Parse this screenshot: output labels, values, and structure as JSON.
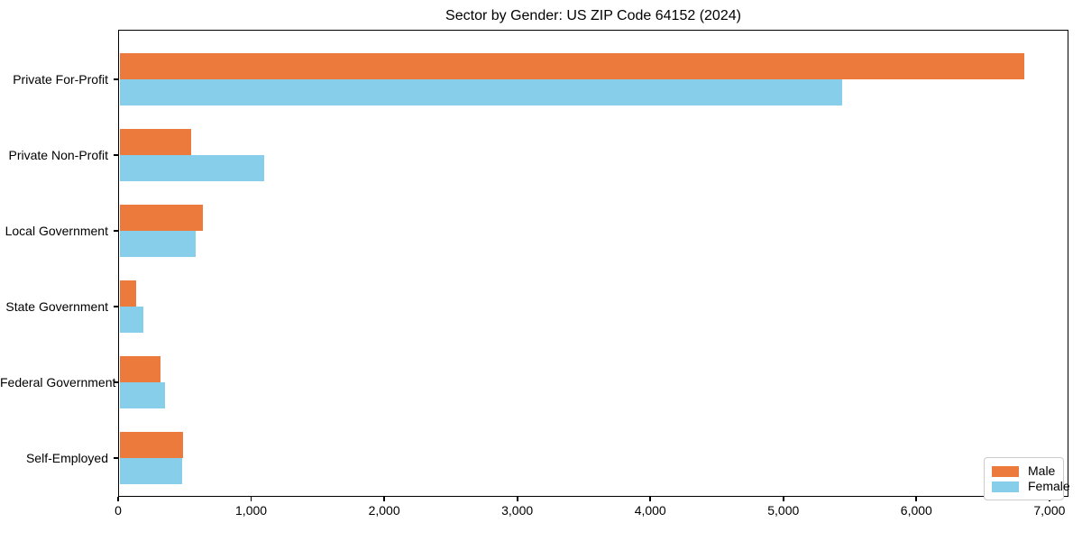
{
  "chart_data": {
    "type": "bar",
    "orientation": "horizontal",
    "title": "Sector by Gender: US ZIP Code 64152 (2024)",
    "categories": [
      "Private For-Profit",
      "Private Non-Profit",
      "Local Government",
      "State Government",
      "Federal Government",
      "Self-Employed"
    ],
    "series": [
      {
        "name": "Male",
        "color": "#EC7A3C",
        "values": [
          6810,
          550,
          635,
          135,
          320,
          490
        ]
      },
      {
        "name": "Female",
        "color": "#87CEEB",
        "values": [
          5440,
          1100,
          580,
          190,
          350,
          480
        ]
      }
    ],
    "xlim": [
      0,
      7143
    ],
    "x_ticks": [
      0,
      1000,
      2000,
      3000,
      4000,
      5000,
      6000,
      7000
    ],
    "x_tick_labels": [
      "0",
      "1,000",
      "2,000",
      "3,000",
      "4,000",
      "5,000",
      "6,000",
      "7,000"
    ],
    "ylabel": "",
    "xlabel": "",
    "grid": false,
    "legend": {
      "position": "lower right",
      "entries": [
        "Male",
        "Female"
      ]
    },
    "colors": {
      "male": "#EC7A3C",
      "female": "#87CEEB",
      "axis": "#000000",
      "legend_border": "#cccccc"
    }
  }
}
